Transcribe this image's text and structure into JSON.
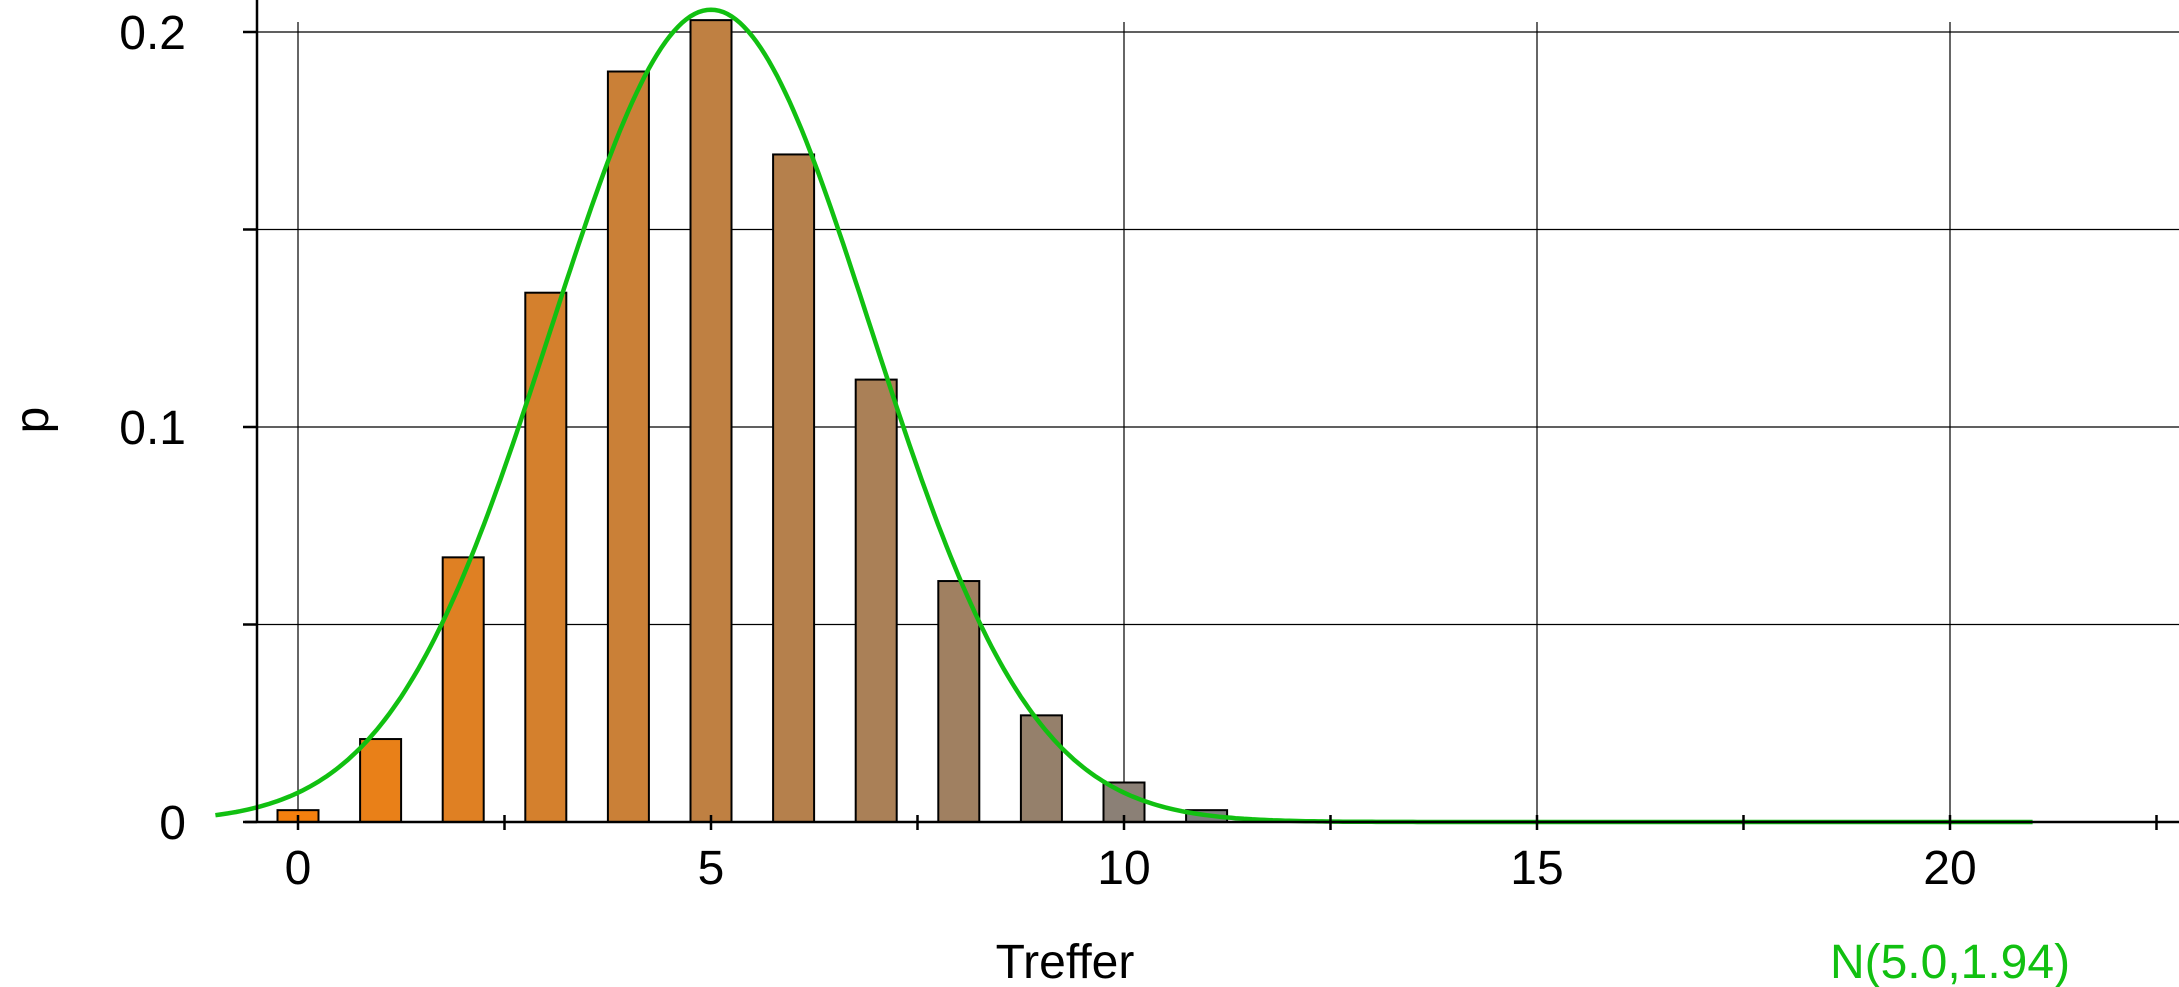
{
  "chart_data": {
    "type": "bar",
    "xlabel": "Treffer",
    "ylabel": "p",
    "xlim": [
      -1,
      22.5
    ],
    "ylim": [
      0,
      0.2
    ],
    "x_ticks": [
      0,
      5,
      10,
      15,
      20
    ],
    "y_ticks": [
      0,
      0.1,
      0.2
    ],
    "y_tick_labels": [
      "0",
      "0.1",
      "0.2"
    ],
    "grid": true,
    "x": [
      0,
      1,
      2,
      3,
      4,
      5,
      6,
      7,
      8,
      9,
      10,
      11
    ],
    "values": [
      0.003,
      0.021,
      0.067,
      0.134,
      0.19,
      0.203,
      0.169,
      0.112,
      0.061,
      0.027,
      0.01,
      0.003
    ],
    "overlay": {
      "type": "line",
      "name": "N(5.0,1.94)",
      "function": "normal",
      "mean": 5.0,
      "sd": 1.94,
      "x_range": [
        -1,
        21
      ],
      "color": "#11c011"
    },
    "colors": {
      "bar_start": "#f4800e",
      "bar_end": "#808080",
      "curve": "#11c011",
      "grid": "#000000"
    }
  }
}
